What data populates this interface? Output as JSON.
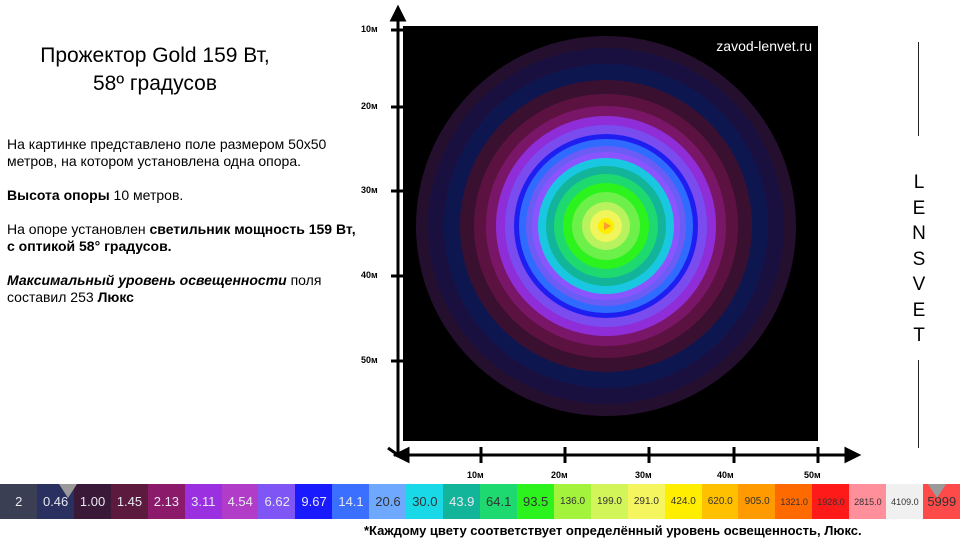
{
  "title": {
    "line1": "Прожектор Gold 159 Вт,",
    "line2": "58º градусов"
  },
  "description": {
    "p1": "На картинке представлено поле размером 50х50 метров, на котором установлена  одна опора.",
    "p2_bold": "Высота опоры",
    "p2_rest": " 10 метров.",
    "p3_start": "На опоре установлен ",
    "p3_bold": " светильник мощность 159 Вт, с оптикой 58° градусов.",
    "p4_italic": "Максимальный уровень освещенности",
    "p4_rest": " поля  составил 253 ",
    "p4_bold_end": "Люкс"
  },
  "plot": {
    "site_label": "zavod-lenvet.ru",
    "y_labels": [
      "10м",
      "20м",
      "30м",
      "40м",
      "50м"
    ],
    "x_labels": [
      "10м",
      "20м",
      "30м",
      "40м",
      "50м"
    ]
  },
  "logo": {
    "letters": [
      "L",
      "E",
      "N",
      "S",
      "V",
      "E",
      "T"
    ]
  },
  "legend": {
    "cells": [
      {
        "label": "2",
        "color": "#3a3f54"
      },
      {
        "label": "0.46",
        "color": "#2a3060"
      },
      {
        "label": "1.00",
        "color": "#3a1838"
      },
      {
        "label": "1.45",
        "color": "#5b1a3e"
      },
      {
        "label": "2.13",
        "color": "#8c1a6a"
      },
      {
        "label": "3.11",
        "color": "#9b30e0"
      },
      {
        "label": "4.54",
        "color": "#b03cc8"
      },
      {
        "label": "6.62",
        "color": "#7f55f5"
      },
      {
        "label": "9.67",
        "color": "#1a1aff"
      },
      {
        "label": "14.1",
        "color": "#3a6fff"
      },
      {
        "label": "20.6",
        "color": "#6fa8ff"
      },
      {
        "label": "30.0",
        "color": "#19d8e8"
      },
      {
        "label": "43.9",
        "color": "#12b59a"
      },
      {
        "label": "64.1",
        "color": "#1ed870"
      },
      {
        "label": "93.5",
        "color": "#2cf21e"
      },
      {
        "label": "136.0",
        "color": "#a3f23c"
      },
      {
        "label": "199.0",
        "color": "#d2f55a"
      },
      {
        "label": "291.0",
        "color": "#f5f560"
      },
      {
        "label": "424.0",
        "color": "#ffee00"
      },
      {
        "label": "620.0",
        "color": "#ffc000"
      },
      {
        "label": "905.0",
        "color": "#ff9a00"
      },
      {
        "label": "1321.0",
        "color": "#ff6a00"
      },
      {
        "label": "1928.0",
        "color": "#ff1a1a"
      },
      {
        "label": "2815.0",
        "color": "#ff8f9a"
      },
      {
        "label": "4109.0",
        "color": "#f0f0f0"
      },
      {
        "label": "5999",
        "color": "#ff4a4a"
      }
    ]
  },
  "footnote": "*Каждому цвету соответствует  определённый уровень освещенность, Люкс."
}
